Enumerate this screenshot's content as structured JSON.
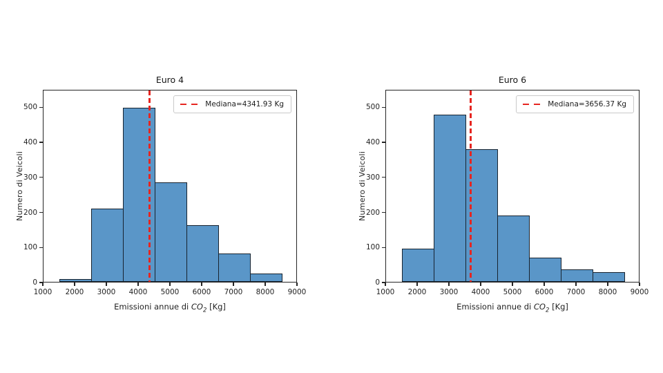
{
  "figure": {
    "background": "#ffffff"
  },
  "chart_data": [
    {
      "type": "bar",
      "subtype": "histogram",
      "title": "Euro 4",
      "xlabel": "Emissioni annue di CO₂ [Kg]",
      "xlabel_parts": {
        "pre": "Emissioni annue di ",
        "math": "CO",
        "sub": "2",
        "post": " [Kg]"
      },
      "ylabel": "Numero di Veicoli",
      "bin_edges": [
        1500,
        2500,
        3500,
        4500,
        5500,
        6500,
        7500,
        8500
      ],
      "values": [
        8,
        210,
        497,
        283,
        162,
        80,
        23
      ],
      "median": 4341.93,
      "legend_label": "Mediana=4341.93 Kg",
      "legend_position": "upper right",
      "xlim": [
        1000,
        9000
      ],
      "ylim": [
        0,
        550
      ],
      "x_ticks": [
        1000,
        2000,
        3000,
        4000,
        5000,
        6000,
        7000,
        8000,
        9000
      ],
      "y_ticks": [
        0,
        100,
        200,
        300,
        400,
        500
      ],
      "grid": false,
      "bar_color": "#5a96c8",
      "bar_edge_color": "#17222e",
      "median_color": "#e62520"
    },
    {
      "type": "bar",
      "subtype": "histogram",
      "title": "Euro 6",
      "xlabel": "Emissioni annue di CO₂ [Kg]",
      "xlabel_parts": {
        "pre": "Emissioni annue di ",
        "math": "CO",
        "sub": "2",
        "post": " [Kg]"
      },
      "ylabel": "Numero di Veicoli",
      "bin_edges": [
        1500,
        2500,
        3500,
        4500,
        5500,
        6500,
        7500,
        8500
      ],
      "values": [
        95,
        477,
        378,
        190,
        70,
        35,
        27
      ],
      "median": 3656.37,
      "legend_label": "Mediana=3656.37 Kg",
      "legend_position": "upper right",
      "xlim": [
        1000,
        9000
      ],
      "ylim": [
        0,
        550
      ],
      "x_ticks": [
        1000,
        2000,
        3000,
        4000,
        5000,
        6000,
        7000,
        8000,
        9000
      ],
      "y_ticks": [
        0,
        100,
        200,
        300,
        400,
        500
      ],
      "grid": false,
      "bar_color": "#5a96c8",
      "bar_edge_color": "#17222e",
      "median_color": "#e62520"
    }
  ]
}
